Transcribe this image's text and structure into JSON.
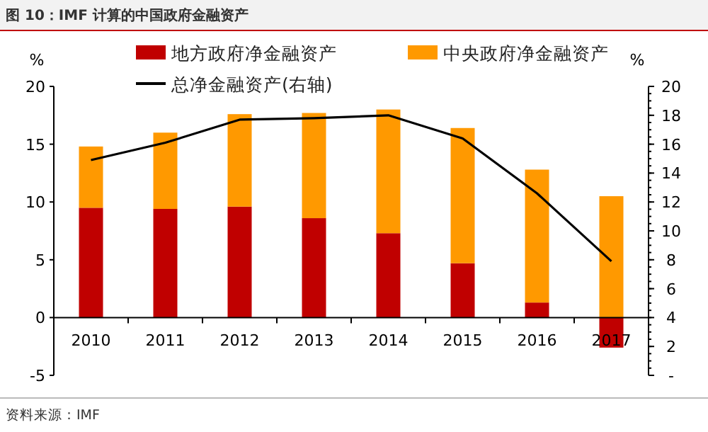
{
  "chart_data": {
    "type": "bar",
    "title": "图 10：IMF 计算的中国政府金融资产",
    "categories": [
      "2010",
      "2011",
      "2012",
      "2013",
      "2014",
      "2015",
      "2016",
      "2017"
    ],
    "stacked": true,
    "legend": "top",
    "ylabel": "%",
    "y2label": "%",
    "ylim": [
      -5,
      20
    ],
    "yticks": [
      -5,
      0,
      5,
      10,
      15,
      20
    ],
    "y2lim": [
      0,
      20
    ],
    "y2ticks": [
      {
        "value": 0,
        "label": "-"
      },
      2,
      4,
      6,
      8,
      10,
      12,
      14,
      16,
      18,
      20
    ],
    "series": [
      {
        "name": "地方政府净金融资产",
        "color": "#c00000",
        "values": [
          9.5,
          9.4,
          9.6,
          8.6,
          7.3,
          4.7,
          1.3,
          -2.6
        ]
      },
      {
        "name": "中央政府净金融资产",
        "color": "#ff9900",
        "values": [
          5.3,
          6.6,
          8.0,
          9.1,
          10.7,
          11.7,
          11.5,
          10.5
        ]
      },
      {
        "name": "总净金融资产(右轴)",
        "type": "line",
        "axis": "y2",
        "color": "#000000",
        "values": [
          14.9,
          16.1,
          17.7,
          17.8,
          18.0,
          16.4,
          12.6,
          7.9
        ]
      }
    ],
    "annotations": [
      "资料来源：IMF"
    ]
  }
}
